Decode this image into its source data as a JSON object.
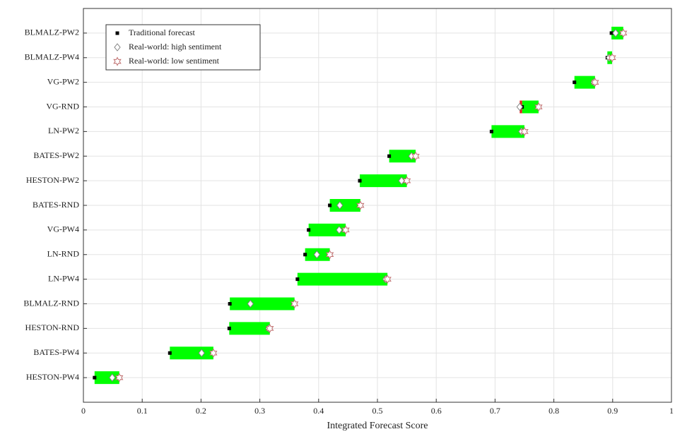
{
  "chart_data": {
    "type": "range",
    "xlabel": "Integrated Forecast Score",
    "categories": [
      "BLMALZ-PW2",
      "BLMALZ-PW4",
      "VG-PW2",
      "VG-RND",
      "LN-PW2",
      "BATES-PW2",
      "HESTON-PW2",
      "BATES-RND",
      "VG-PW4",
      "LN-RND",
      "LN-PW4",
      "BLMALZ-RND",
      "HESTON-RND",
      "BATES-PW4",
      "HESTON-PW4"
    ],
    "series": [
      {
        "name": "Traditional forecast",
        "color": "#000000",
        "values": [
          0.898,
          0.891,
          0.835,
          0.746,
          0.694,
          0.52,
          0.47,
          0.419,
          0.383,
          0.377,
          0.364,
          0.249,
          0.248,
          0.147,
          0.019
        ]
      },
      {
        "name": "Real-world: high sentiment",
        "color": "#808080",
        "values": [
          0.905,
          0.894,
          0.868,
          0.742,
          0.745,
          0.558,
          0.541,
          0.436,
          0.435,
          0.397,
          0.514,
          0.284,
          0.315,
          0.201,
          0.049
        ]
      },
      {
        "name": "Real-world: low sentiment",
        "color": "#c07070",
        "values": [
          0.918,
          0.899,
          0.87,
          0.774,
          0.75,
          0.565,
          0.55,
          0.471,
          0.446,
          0.419,
          0.517,
          0.359,
          0.317,
          0.221,
          0.061
        ]
      }
    ],
    "bar_color": "#00ff00",
    "reverse_color": "#e02020",
    "xlim": [
      0,
      1
    ],
    "xticks": [
      0,
      0.1,
      0.2,
      0.3,
      0.4,
      0.5,
      0.6,
      0.7,
      0.8,
      0.9,
      1
    ],
    "grid": true,
    "legend": "upper-left"
  }
}
